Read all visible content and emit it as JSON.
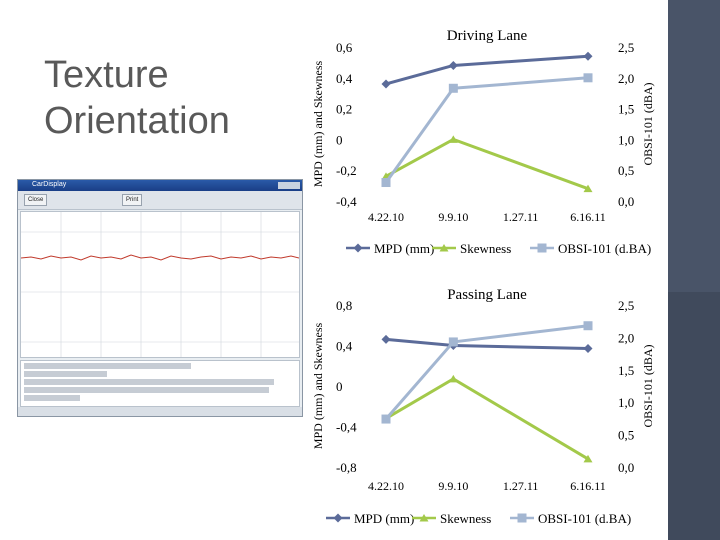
{
  "slide": {
    "title_line1": "Texture",
    "title_line2": "Orientation"
  },
  "inset_window": {
    "title": "CarDisplay",
    "buttons": [
      "Close",
      "Print"
    ]
  },
  "colors": {
    "mpd": "#5b6b99",
    "skewness": "#a3c94a",
    "obsi": "#a3b6d1",
    "sidebar": "#404a5c"
  },
  "chart_data": [
    {
      "type": "line",
      "title": "Driving Lane",
      "categories": [
        "4.22.10",
        "9.9.10",
        "1.27.11",
        "6.16.11"
      ],
      "ylabel": "MPD (mm) and Skewness",
      "y2label": "OBSI-101 (dBA)",
      "ylim": [
        -0.4,
        0.6
      ],
      "y2lim": [
        0.0,
        2.5
      ],
      "yticks": [
        "0,6",
        "0,4",
        "0,2",
        "0",
        "-0,2",
        "-0,4"
      ],
      "y2ticks": [
        "2,5",
        "2,0",
        "1,5",
        "1,0",
        "0,5",
        "0,0"
      ],
      "series": [
        {
          "name": "MPD (mm)",
          "axis": "left",
          "points": [
            [
              0,
              0.36
            ],
            [
              1,
              0.48
            ],
            [
              3,
              0.54
            ]
          ]
        },
        {
          "name": "Skewness",
          "axis": "left",
          "points": [
            [
              0,
              -0.24
            ],
            [
              1,
              0.0
            ],
            [
              3,
              -0.32
            ]
          ]
        },
        {
          "name": "OBSI-101 (d.BA)",
          "axis": "right",
          "points": [
            [
              0,
              0.3
            ],
            [
              1,
              1.83
            ],
            [
              3,
              2.0
            ]
          ]
        }
      ],
      "legend_position": "bottom"
    },
    {
      "type": "line",
      "title": "Passing Lane",
      "categories": [
        "4.22.10",
        "9.9.10",
        "1.27.11",
        "6.16.11"
      ],
      "ylabel": "MPD (mm) and Skewness",
      "y2label": "OBSI-101 (dBA)",
      "ylim": [
        -0.8,
        0.8
      ],
      "y2lim": [
        0.0,
        2.5
      ],
      "yticks": [
        "0,8",
        "0,4",
        "0",
        "-0,4",
        "-0,8"
      ],
      "y2ticks": [
        "2,5",
        "2,0",
        "1,5",
        "1,0",
        "0,5",
        "0,0"
      ],
      "series": [
        {
          "name": "MPD (mm)",
          "axis": "left",
          "points": [
            [
              0,
              0.46
            ],
            [
              1,
              0.4
            ],
            [
              3,
              0.37
            ]
          ]
        },
        {
          "name": "Skewness",
          "axis": "left",
          "points": [
            [
              0,
              -0.32
            ],
            [
              1,
              0.07
            ],
            [
              3,
              -0.72
            ]
          ]
        },
        {
          "name": "OBSI-101 (d.BA)",
          "axis": "right",
          "points": [
            [
              0,
              0.74
            ],
            [
              1,
              1.93
            ],
            [
              3,
              2.18
            ]
          ]
        }
      ],
      "legend_position": "bottom"
    }
  ]
}
